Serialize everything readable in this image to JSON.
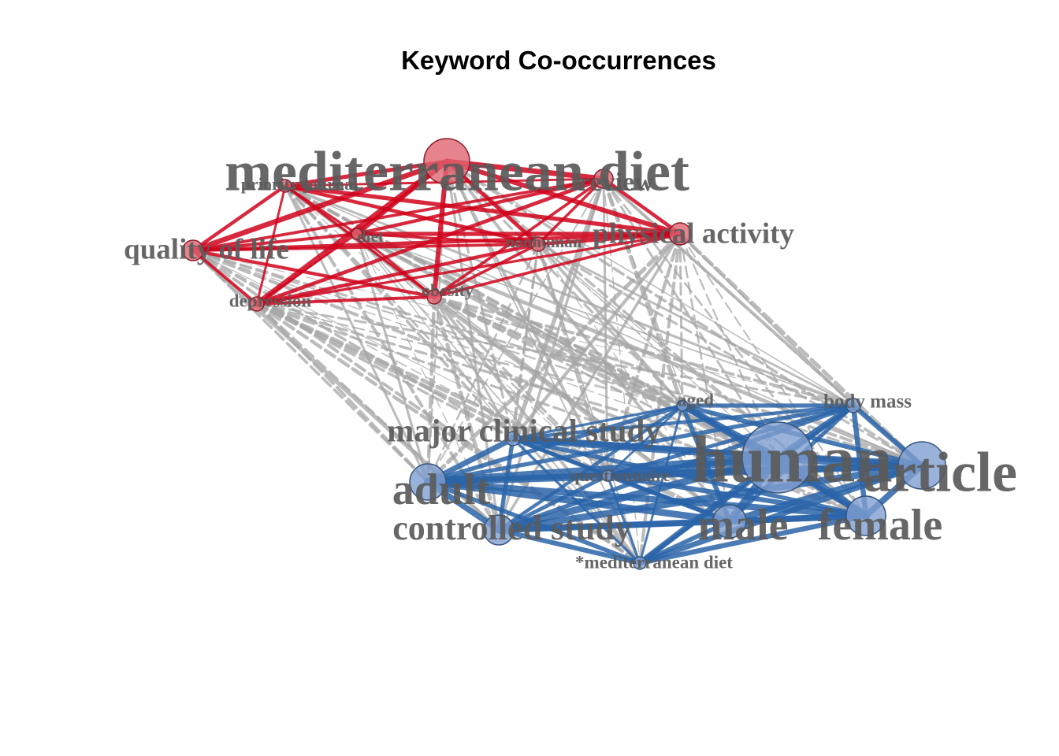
{
  "title": "Keyword Co-occurrences",
  "colors": {
    "cluster1_node": "#e06470",
    "cluster1_edge": "#d0021b",
    "cluster2_node": "#7f9fcf",
    "cluster2_edge": "#2a64a8",
    "between_edge": "#a6a6a6",
    "label": "#5a5a5a",
    "node_stroke": "#8b1c2c",
    "node_stroke2": "#35557f"
  },
  "graph": {
    "clusters": [
      {
        "id": 1,
        "color": "red"
      },
      {
        "id": 2,
        "color": "blue"
      }
    ],
    "nodes": [
      {
        "id": "mediterranean diet",
        "label": "mediterranean diet",
        "cluster": 1,
        "size": 5
      },
      {
        "id": "review",
        "label": "review",
        "cluster": 1,
        "size": 2
      },
      {
        "id": "priority journal",
        "label": "priority journal",
        "cluster": 1,
        "size": 1
      },
      {
        "id": "physical activity",
        "label": "physical activity",
        "cluster": 1,
        "size": 2
      },
      {
        "id": "quality of life",
        "label": "quality of life",
        "cluster": 1,
        "size": 2
      },
      {
        "id": "diet",
        "label": "diet",
        "cluster": 1,
        "size": 1
      },
      {
        "id": "nonhuman",
        "label": "nonhuman",
        "cluster": 1,
        "size": 1
      },
      {
        "id": "depression",
        "label": "depression",
        "cluster": 1,
        "size": 1
      },
      {
        "id": "obesity",
        "label": "obesity",
        "cluster": 1,
        "size": 1
      },
      {
        "id": "aged",
        "label": "aged",
        "cluster": 2,
        "size": 1
      },
      {
        "id": "body mass",
        "label": "body mass",
        "cluster": 2,
        "size": 1
      },
      {
        "id": "major clinical study",
        "label": "major clinical study",
        "cluster": 2,
        "size": 2
      },
      {
        "id": "human",
        "label": "human",
        "cluster": 2,
        "size": 6
      },
      {
        "id": "article",
        "label": "article",
        "cluster": 2,
        "size": 4
      },
      {
        "id": "adult",
        "label": "adult",
        "cluster": 2,
        "size": 3
      },
      {
        "id": "questionnaire",
        "label": "questionnaire",
        "cluster": 2,
        "size": 1
      },
      {
        "id": "controlled study",
        "label": "controlled study",
        "cluster": 2,
        "size": 3
      },
      {
        "id": "male",
        "label": "male",
        "cluster": 2,
        "size": 4
      },
      {
        "id": "female",
        "label": "female",
        "cluster": 2,
        "size": 4
      },
      {
        "id": "*mediterranean diet",
        "label": "*mediterranean diet",
        "cluster": 2,
        "size": 1
      }
    ]
  }
}
